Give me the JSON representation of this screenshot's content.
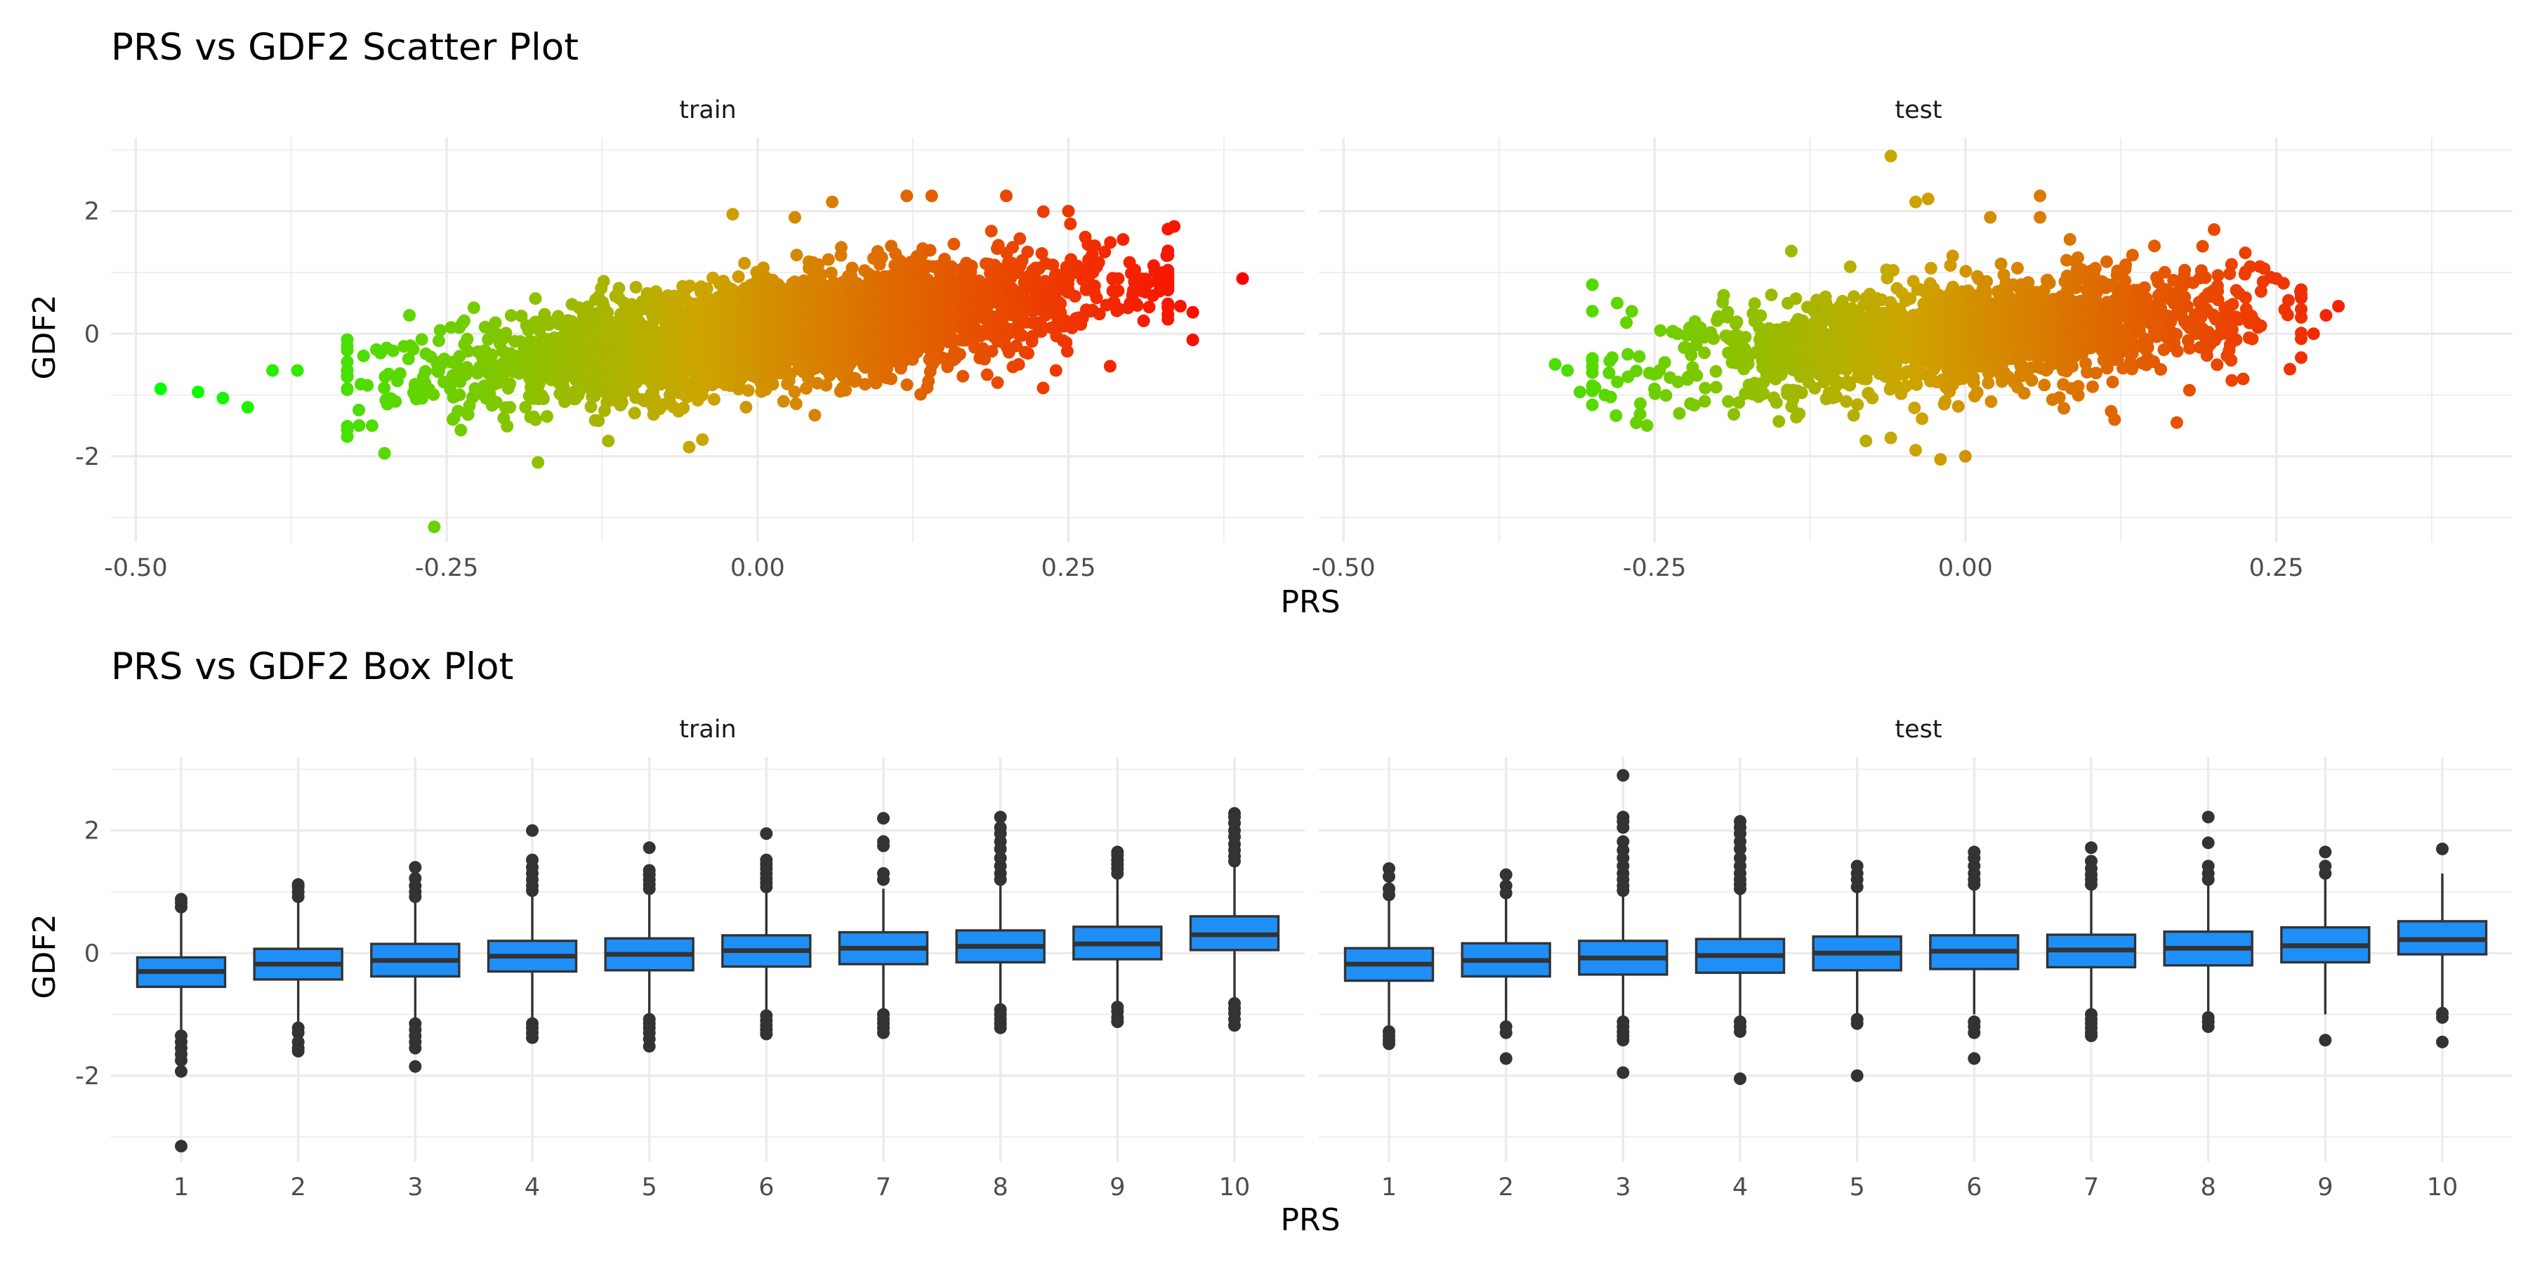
{
  "chart_data": [
    {
      "type": "scatter",
      "title": "PRS vs GDF2 Scatter Plot",
      "xlabel": "PRS",
      "ylabel": "GDF2",
      "xlim": [
        -0.52,
        0.44
      ],
      "ylim": [
        -3.4,
        3.2
      ],
      "x_ticks": [
        -0.5,
        -0.25,
        0.0,
        0.25
      ],
      "x_tick_labels": [
        "-0.50",
        "-0.25",
        "0.00",
        "0.25"
      ],
      "y_ticks": [
        -2,
        0,
        2
      ],
      "y_tick_labels": [
        "-2",
        "0",
        "2"
      ],
      "grid": true,
      "color_scale": {
        "low": "#00ff00",
        "high": "#ff0000",
        "mapped_to": "PRS"
      },
      "panels": [
        {
          "name": "train",
          "x_center_range": [
            -0.33,
            0.33
          ],
          "slope": 2.4,
          "noise_sd": 0.42,
          "n_points": 3200,
          "outliers": [
            {
              "x": -0.48,
              "y": -0.9
            },
            {
              "x": -0.45,
              "y": -0.95
            },
            {
              "x": -0.43,
              "y": -1.05
            },
            {
              "x": -0.41,
              "y": -1.2
            },
            {
              "x": -0.39,
              "y": -0.6
            },
            {
              "x": -0.37,
              "y": -0.6
            },
            {
              "x": -0.3,
              "y": -1.95
            },
            {
              "x": -0.31,
              "y": -1.5
            },
            {
              "x": -0.26,
              "y": -3.15
            },
            {
              "x": -0.33,
              "y": -0.2
            },
            {
              "x": -0.28,
              "y": 0.3
            },
            {
              "x": -0.12,
              "y": -1.75
            },
            {
              "x": -0.055,
              "y": -1.85
            },
            {
              "x": -0.02,
              "y": 1.95
            },
            {
              "x": 0.03,
              "y": 1.9
            },
            {
              "x": 0.06,
              "y": 2.15
            },
            {
              "x": 0.12,
              "y": 2.25
            },
            {
              "x": 0.14,
              "y": 2.25
            },
            {
              "x": 0.2,
              "y": 2.25
            },
            {
              "x": 0.25,
              "y": 2.0
            },
            {
              "x": 0.29,
              "y": 0.9
            },
            {
              "x": 0.31,
              "y": 0.7
            },
            {
              "x": 0.335,
              "y": 1.75
            },
            {
              "x": 0.33,
              "y": 0.95
            },
            {
              "x": 0.34,
              "y": 0.45
            },
            {
              "x": 0.35,
              "y": 0.35
            },
            {
              "x": 0.35,
              "y": -0.1
            },
            {
              "x": 0.39,
              "y": 0.9
            },
            {
              "x": 0.21,
              "y": -0.5
            },
            {
              "x": 0.24,
              "y": -0.6
            }
          ]
        },
        {
          "name": "test",
          "x_center_range": [
            -0.3,
            0.27
          ],
          "slope": 1.8,
          "noise_sd": 0.42,
          "n_points": 1700,
          "outliers": [
            {
              "x": -0.33,
              "y": -0.5
            },
            {
              "x": -0.32,
              "y": -0.6
            },
            {
              "x": -0.31,
              "y": -0.95
            },
            {
              "x": -0.3,
              "y": 0.8
            },
            {
              "x": -0.28,
              "y": 0.5
            },
            {
              "x": -0.29,
              "y": -1.0
            },
            {
              "x": -0.25,
              "y": -0.9
            },
            {
              "x": -0.23,
              "y": -1.3
            },
            {
              "x": -0.14,
              "y": 1.35
            },
            {
              "x": -0.08,
              "y": -1.75
            },
            {
              "x": -0.06,
              "y": -1.7
            },
            {
              "x": -0.04,
              "y": -1.9
            },
            {
              "x": -0.02,
              "y": -2.05
            },
            {
              "x": 0.0,
              "y": -2.0
            },
            {
              "x": -0.06,
              "y": 2.9
            },
            {
              "x": -0.04,
              "y": 2.15
            },
            {
              "x": -0.03,
              "y": 2.2
            },
            {
              "x": 0.02,
              "y": 1.9
            },
            {
              "x": 0.06,
              "y": 1.9
            },
            {
              "x": 0.06,
              "y": 2.25
            },
            {
              "x": 0.17,
              "y": -1.45
            },
            {
              "x": 0.2,
              "y": 1.7
            },
            {
              "x": 0.12,
              "y": -1.4
            },
            {
              "x": 0.25,
              "y": 0.9
            },
            {
              "x": 0.27,
              "y": 0.4
            },
            {
              "x": 0.28,
              "y": 0.0
            },
            {
              "x": 0.29,
              "y": 0.3
            },
            {
              "x": 0.3,
              "y": 0.45
            }
          ]
        }
      ]
    },
    {
      "type": "box",
      "title": "PRS vs GDF2 Box Plot",
      "xlabel": "PRS",
      "ylabel": "GDF2",
      "categories": [
        "1",
        "2",
        "3",
        "4",
        "5",
        "6",
        "7",
        "8",
        "9",
        "10"
      ],
      "ylim": [
        -3.4,
        3.2
      ],
      "y_ticks": [
        -2,
        0,
        2
      ],
      "y_tick_labels": [
        "-2",
        "0",
        "2"
      ],
      "grid": true,
      "box_color": "#1e8ff7",
      "line_color": "#333333",
      "panels": [
        {
          "name": "train",
          "boxes": [
            {
              "q1": -0.55,
              "median": -0.3,
              "q3": -0.07,
              "lower": -1.25,
              "upper": 0.65,
              "outliers": [
                -1.35,
                -1.45,
                -1.55,
                -1.65,
                -1.75,
                -1.93,
                -3.15,
                0.75,
                0.82,
                0.88
              ]
            },
            {
              "q1": -0.43,
              "median": -0.18,
              "q3": 0.07,
              "lower": -1.15,
              "upper": 0.85,
              "outliers": [
                -1.22,
                -1.3,
                -1.45,
                -1.55,
                -1.6,
                0.92,
                1.0,
                1.08,
                1.12
              ]
            },
            {
              "q1": -0.38,
              "median": -0.12,
              "q3": 0.15,
              "lower": -1.05,
              "upper": 0.85,
              "outliers": [
                -1.15,
                -1.25,
                -1.35,
                -1.45,
                -1.55,
                -1.85,
                0.92,
                1.0,
                1.1,
                1.22,
                1.4
              ]
            },
            {
              "q1": -0.3,
              "median": -0.05,
              "q3": 0.2,
              "lower": -1.1,
              "upper": 0.95,
              "outliers": [
                -1.15,
                -1.22,
                -1.3,
                -1.38,
                1.02,
                1.1,
                1.2,
                1.3,
                1.4,
                1.52,
                2.0
              ]
            },
            {
              "q1": -0.28,
              "median": -0.02,
              "q3": 0.24,
              "lower": -1.0,
              "upper": 0.98,
              "outliers": [
                -1.08,
                -1.15,
                -1.22,
                -1.3,
                -1.4,
                -1.52,
                1.05,
                1.12,
                1.2,
                1.28,
                1.35,
                1.72
              ]
            },
            {
              "q1": -0.22,
              "median": 0.04,
              "q3": 0.29,
              "lower": -0.95,
              "upper": 1.0,
              "outliers": [
                -1.02,
                -1.1,
                -1.18,
                -1.25,
                -1.32,
                1.08,
                1.15,
                1.22,
                1.3,
                1.38,
                1.45,
                1.52,
                1.95
              ]
            },
            {
              "q1": -0.18,
              "median": 0.08,
              "q3": 0.34,
              "lower": -0.95,
              "upper": 1.05,
              "outliers": [
                -1.0,
                -1.08,
                -1.15,
                -1.22,
                -1.3,
                1.2,
                1.3,
                1.75,
                1.82,
                2.2
              ]
            },
            {
              "q1": -0.15,
              "median": 0.11,
              "q3": 0.37,
              "lower": -0.85,
              "upper": 1.1,
              "outliers": [
                -0.92,
                -1.0,
                -1.08,
                -1.15,
                -1.22,
                1.2,
                1.3,
                1.42,
                1.55,
                1.7,
                1.82,
                1.95,
                2.05,
                2.22
              ]
            },
            {
              "q1": -0.1,
              "median": 0.15,
              "q3": 0.43,
              "lower": -0.8,
              "upper": 1.2,
              "outliers": [
                -0.88,
                -0.95,
                -1.05,
                -1.12,
                1.3,
                1.38,
                1.45,
                1.52,
                1.6,
                1.65
              ]
            },
            {
              "q1": 0.05,
              "median": 0.3,
              "q3": 0.6,
              "lower": -0.75,
              "upper": 1.4,
              "outliers": [
                -0.82,
                -0.9,
                -0.98,
                -1.08,
                -1.18,
                1.5,
                1.58,
                1.68,
                1.78,
                1.9,
                2.0,
                2.12,
                2.22,
                2.28
              ]
            }
          ]
        },
        {
          "name": "test",
          "boxes": [
            {
              "q1": -0.45,
              "median": -0.18,
              "q3": 0.08,
              "lower": -1.2,
              "upper": 0.9,
              "outliers": [
                -1.28,
                -1.35,
                -1.42,
                -1.48,
                0.95,
                1.05,
                1.25,
                1.38
              ]
            },
            {
              "q1": -0.38,
              "median": -0.12,
              "q3": 0.16,
              "lower": -1.1,
              "upper": 0.9,
              "outliers": [
                -1.2,
                -1.3,
                -1.72,
                0.98,
                1.1,
                1.28
              ]
            },
            {
              "q1": -0.35,
              "median": -0.08,
              "q3": 0.2,
              "lower": -1.05,
              "upper": 0.95,
              "outliers": [
                -1.12,
                -1.2,
                -1.28,
                -1.35,
                -1.42,
                -1.95,
                1.02,
                1.1,
                1.2,
                1.3,
                1.42,
                1.55,
                1.68,
                1.82,
                2.05,
                2.15,
                2.22,
                2.9
              ]
            },
            {
              "q1": -0.32,
              "median": -0.04,
              "q3": 0.23,
              "lower": -1.05,
              "upper": 0.98,
              "outliers": [
                -1.12,
                -1.2,
                -1.28,
                -2.05,
                1.05,
                1.12,
                1.2,
                1.3,
                1.42,
                1.55,
                1.7,
                1.82,
                1.95,
                2.05,
                2.15
              ]
            },
            {
              "q1": -0.28,
              "median": 0.0,
              "q3": 0.27,
              "lower": -1.0,
              "upper": 1.0,
              "outliers": [
                -1.08,
                -1.15,
                -2.0,
                1.08,
                1.2,
                1.3,
                1.42
              ]
            },
            {
              "q1": -0.26,
              "median": 0.03,
              "q3": 0.29,
              "lower": -1.0,
              "upper": 1.05,
              "outliers": [
                -1.12,
                -1.2,
                -1.3,
                -1.72,
                1.12,
                1.2,
                1.3,
                1.42,
                1.55,
                1.65
              ]
            },
            {
              "q1": -0.23,
              "median": 0.05,
              "q3": 0.3,
              "lower": -0.95,
              "upper": 1.05,
              "outliers": [
                -1.0,
                -1.08,
                -1.15,
                -1.22,
                -1.3,
                -1.35,
                1.12,
                1.2,
                1.28,
                1.38,
                1.5,
                1.72
              ]
            },
            {
              "q1": -0.2,
              "median": 0.08,
              "q3": 0.35,
              "lower": -0.95,
              "upper": 1.1,
              "outliers": [
                -1.05,
                -1.12,
                -1.2,
                1.2,
                1.3,
                1.42,
                1.8,
                2.22
              ]
            },
            {
              "q1": -0.15,
              "median": 0.12,
              "q3": 0.42,
              "lower": -1.0,
              "upper": 1.2,
              "outliers": [
                -1.42,
                1.3,
                1.42,
                1.65
              ]
            },
            {
              "q1": -0.02,
              "median": 0.22,
              "q3": 0.52,
              "lower": -0.9,
              "upper": 1.3,
              "outliers": [
                -0.98,
                -1.05,
                -1.45,
                1.7
              ]
            }
          ]
        }
      ]
    }
  ]
}
